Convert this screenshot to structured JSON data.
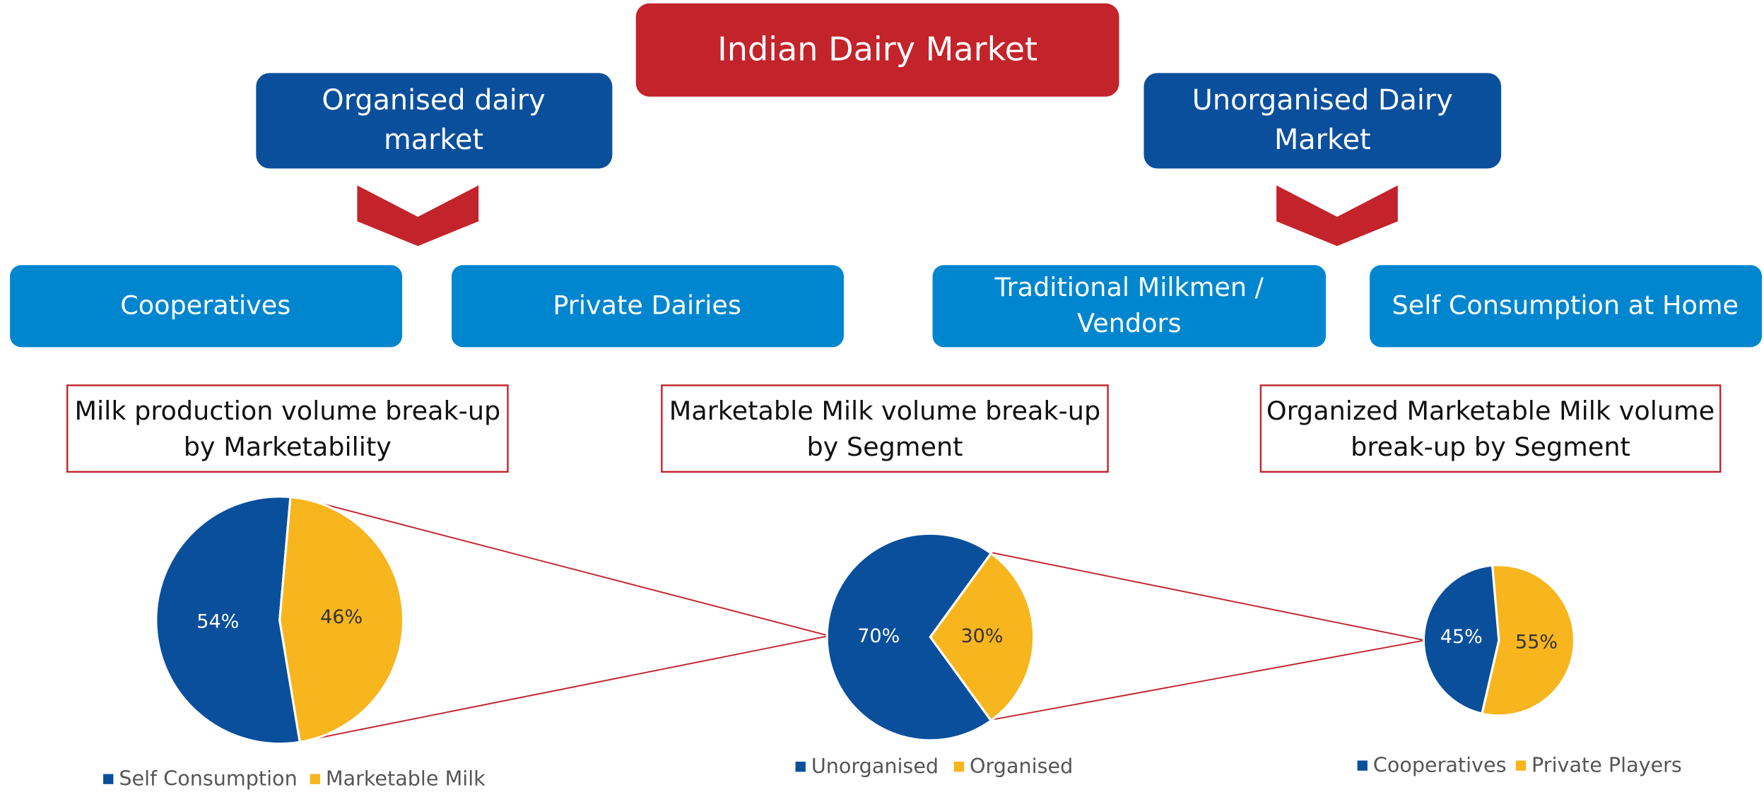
{
  "title": "Indian Dairy Market",
  "nodes": [
    {
      "label": [
        "Organised dairy",
        "market"
      ]
    },
    {
      "label": [
        "Unorganised Dairy",
        "Market"
      ]
    },
    {
      "label": [
        "Cooperatives"
      ]
    },
    {
      "label": [
        "Private Dairies"
      ]
    },
    {
      "label": [
        "Traditional Milkmen /",
        "Vendors"
      ]
    },
    {
      "label": [
        "Self Consumption at Home"
      ]
    }
  ],
  "chart_data": [
    {
      "type": "pie",
      "title": [
        "Milk production volume break-up",
        "by Marketability"
      ],
      "categories": [
        "Self Consumption",
        "Marketable Milk"
      ],
      "values": [
        54,
        46
      ],
      "value_labels": [
        "54%",
        "46%"
      ],
      "colors": [
        "#0a4f9c",
        "#f7b51e"
      ]
    },
    {
      "type": "pie",
      "title": [
        "Marketable Milk volume break-up",
        "by Segment"
      ],
      "categories": [
        "Unorganised",
        "Organised"
      ],
      "values": [
        70,
        30
      ],
      "value_labels": [
        "70%",
        "30%"
      ],
      "colors": [
        "#0a4f9c",
        "#f7b51e"
      ]
    },
    {
      "type": "pie",
      "title": [
        "Organized Marketable Milk volume",
        "break-up by Segment"
      ],
      "categories": [
        "Cooperatives",
        "Private Players"
      ],
      "values": [
        45,
        55
      ],
      "value_labels": [
        "45%",
        "55%"
      ],
      "colors": [
        "#0a4f9c",
        "#f7b51e"
      ]
    }
  ]
}
